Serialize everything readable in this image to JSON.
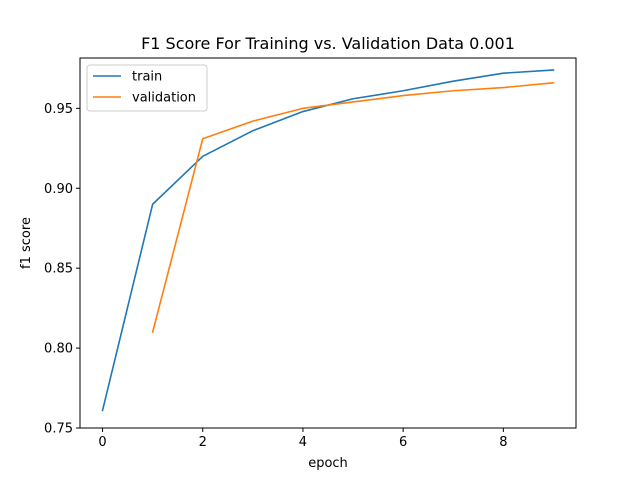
{
  "chart_data": {
    "type": "line",
    "title": "F1 Score For Training vs. Validation Data 0.001",
    "xlabel": "epoch",
    "ylabel": "f1 score",
    "xlim": [
      -0.45,
      9.45
    ],
    "ylim": [
      0.75,
      0.9815
    ],
    "xticks": [
      0,
      2,
      4,
      6,
      8
    ],
    "xtick_labels": [
      "0",
      "2",
      "4",
      "6",
      "8"
    ],
    "yticks": [
      0.75,
      0.8,
      0.85,
      0.9,
      0.95
    ],
    "ytick_labels": [
      "0.75",
      "0.80",
      "0.85",
      "0.90",
      "0.95"
    ],
    "grid": false,
    "legend_position": "top-left",
    "series": [
      {
        "name": "train",
        "color": "#1f77b4",
        "x": [
          0,
          1,
          2,
          3,
          4,
          5,
          6,
          7,
          8,
          9
        ],
        "values": [
          0.761,
          0.89,
          0.92,
          0.936,
          0.948,
          0.956,
          0.961,
          0.967,
          0.972,
          0.974
        ]
      },
      {
        "name": "validation",
        "color": "#ff7f0e",
        "x": [
          1,
          2,
          3,
          4,
          5,
          6,
          7,
          8,
          9
        ],
        "values": [
          0.81,
          0.931,
          0.942,
          0.95,
          0.954,
          0.958,
          0.961,
          0.963,
          0.966
        ]
      }
    ]
  }
}
